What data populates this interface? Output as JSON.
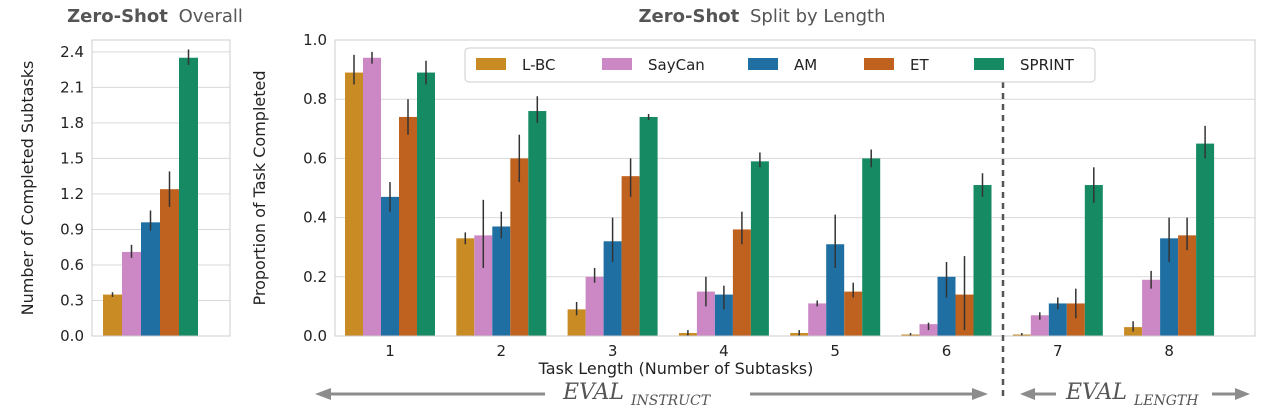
{
  "colors": {
    "L-BC": "#c98b23",
    "SayCan": "#cc88c4",
    "AM": "#1f6fa3",
    "ET": "#c0621f",
    "SPRINT": "#168a62",
    "grid": "#d9d9d9",
    "frame": "#cccccc",
    "errorbar": "#333333",
    "arrow": "#8c8c8c",
    "divider": "#555555"
  },
  "chart_data": [
    {
      "type": "bar",
      "title_bold": "Zero-Shot",
      "title_rest": "Overall",
      "xlabel": "",
      "ylabel": "Number of Completed Subtasks",
      "ylim": [
        0,
        2.5
      ],
      "yticks": [
        0.0,
        0.3,
        0.6,
        0.9,
        1.2,
        1.5,
        1.8,
        2.1,
        2.4
      ],
      "ytick_labels": [
        "0.0",
        "0.3",
        "0.6",
        "0.9",
        "1.2",
        "1.5",
        "1.8",
        "2.1",
        "2.4"
      ],
      "series": [
        {
          "name": "L-BC",
          "value": 0.35,
          "err": [
            0.33,
            0.37
          ]
        },
        {
          "name": "SayCan",
          "value": 0.71,
          "err": [
            0.66,
            0.77
          ]
        },
        {
          "name": "AM",
          "value": 0.96,
          "err": [
            0.89,
            1.06
          ]
        },
        {
          "name": "ET",
          "value": 1.24,
          "err": [
            1.09,
            1.39
          ]
        },
        {
          "name": "SPRINT",
          "value": 2.35,
          "err": [
            2.29,
            2.42
          ]
        }
      ]
    },
    {
      "type": "bar",
      "title_bold": "Zero-Shot",
      "title_rest": "Split by Length",
      "xlabel": "Task Length (Number of Subtasks)",
      "ylabel": "Proportion of Task Completed",
      "ylim": [
        0,
        1.0
      ],
      "yticks": [
        0.0,
        0.2,
        0.4,
        0.6,
        0.8,
        1.0
      ],
      "ytick_labels": [
        "0.0",
        "0.2",
        "0.4",
        "0.6",
        "0.8",
        "1.0"
      ],
      "categories": [
        "1",
        "2",
        "3",
        "4",
        "5",
        "6",
        "7",
        "8"
      ],
      "series": [
        {
          "name": "L-BC",
          "values": [
            0.89,
            0.33,
            0.09,
            0.01,
            0.01,
            0.005,
            0.005,
            0.03
          ],
          "err_lo": [
            0.85,
            0.31,
            0.07,
            0.0,
            0.0,
            0.0,
            0.0,
            0.015
          ],
          "err_hi": [
            0.95,
            0.35,
            0.115,
            0.02,
            0.02,
            0.01,
            0.01,
            0.05
          ]
        },
        {
          "name": "SayCan",
          "values": [
            0.94,
            0.34,
            0.2,
            0.15,
            0.11,
            0.04,
            0.07,
            0.19
          ],
          "err_lo": [
            0.92,
            0.23,
            0.18,
            0.1,
            0.1,
            0.02,
            0.055,
            0.16
          ],
          "err_hi": [
            0.96,
            0.46,
            0.23,
            0.2,
            0.12,
            0.045,
            0.08,
            0.22
          ]
        },
        {
          "name": "AM",
          "values": [
            0.47,
            0.37,
            0.32,
            0.14,
            0.31,
            0.2,
            0.11,
            0.33
          ],
          "err_lo": [
            0.42,
            0.33,
            0.25,
            0.09,
            0.23,
            0.13,
            0.09,
            0.25
          ],
          "err_hi": [
            0.52,
            0.42,
            0.4,
            0.17,
            0.41,
            0.25,
            0.13,
            0.4
          ]
        },
        {
          "name": "ET",
          "values": [
            0.74,
            0.6,
            0.54,
            0.36,
            0.15,
            0.14,
            0.11,
            0.34
          ],
          "err_lo": [
            0.68,
            0.52,
            0.47,
            0.31,
            0.13,
            0.02,
            0.06,
            0.29
          ],
          "err_hi": [
            0.8,
            0.68,
            0.6,
            0.42,
            0.18,
            0.27,
            0.16,
            0.4
          ]
        },
        {
          "name": "SPRINT",
          "values": [
            0.89,
            0.76,
            0.74,
            0.59,
            0.6,
            0.51,
            0.51,
            0.65
          ],
          "err_lo": [
            0.85,
            0.72,
            0.73,
            0.57,
            0.57,
            0.47,
            0.45,
            0.6
          ],
          "err_hi": [
            0.93,
            0.81,
            0.75,
            0.62,
            0.63,
            0.55,
            0.57,
            0.71
          ]
        }
      ],
      "legend": [
        "L-BC",
        "SayCan",
        "AM",
        "ET",
        "SPRINT"
      ],
      "legend_position": "top-center",
      "annotations": {
        "eval_instruct_main": "EVAL",
        "eval_instruct_sub": "INSTRUCT",
        "eval_length_main": "EVAL",
        "eval_length_sub": "LENGTH"
      }
    }
  ]
}
